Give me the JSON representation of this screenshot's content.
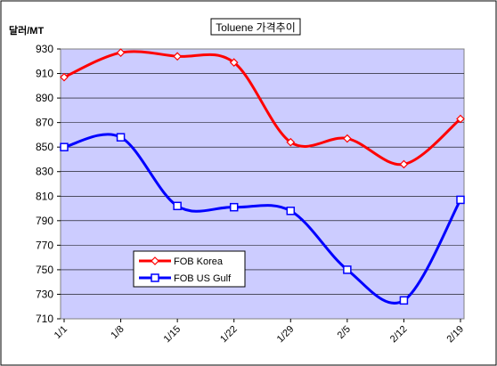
{
  "chart_data": {
    "type": "line",
    "title": "Toluene 가격추이",
    "ylabel": "달러/MT",
    "xlabel": "",
    "categories": [
      "1/1",
      "1/8",
      "1/15",
      "1/22",
      "1/29",
      "2/5",
      "2/12",
      "2/19"
    ],
    "ylim": [
      710,
      930
    ],
    "yticks": [
      710,
      730,
      750,
      770,
      790,
      810,
      830,
      850,
      870,
      890,
      910,
      930
    ],
    "grid": true,
    "legend_position": "bottom-left",
    "series": [
      {
        "name": "FOB Korea",
        "values": [
          907,
          927,
          924,
          919,
          854,
          857,
          836,
          873
        ],
        "color": "#ff0000",
        "marker": "diamond",
        "marker_fill": "#ffffff"
      },
      {
        "name": "FOB US Gulf",
        "values": [
          850,
          858,
          802,
          801,
          798,
          750,
          725,
          807
        ],
        "color": "#0000ff",
        "marker": "square",
        "marker_fill": "#ffffff"
      }
    ],
    "plot_background": "#ccccff"
  }
}
